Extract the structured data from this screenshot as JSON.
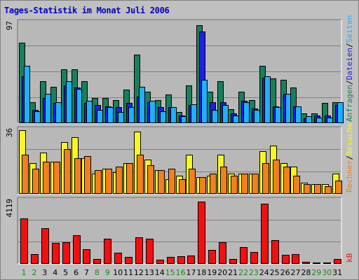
{
  "title": "Tages-Statistik im Monat Juli 2006",
  "colors": {
    "anfragen": "#1a7f5a",
    "dateien": "#2020e0",
    "seiten": "#20b0ff",
    "besuche": "#f8f820",
    "rechner": "#f08020",
    "kb": "#f01010",
    "weekend_label": "#1a8a1a",
    "weekday_label": "#000000",
    "grid": "#808080",
    "panel_bg": "#b8b8b8"
  },
  "chart_data": {
    "type": "bar",
    "title": "Tages-Statistik im Monat Juli 2006",
    "categories": [
      "1",
      "2",
      "3",
      "4",
      "5",
      "6",
      "7",
      "8",
      "9",
      "10",
      "11",
      "12",
      "13",
      "14",
      "15",
      "16",
      "17",
      "18",
      "19",
      "20",
      "21",
      "22",
      "23",
      "24",
      "25",
      "26",
      "27",
      "28",
      "29",
      "30",
      "31"
    ],
    "weekend_days": [
      1,
      2,
      8,
      9,
      15,
      16,
      22,
      23,
      29,
      30
    ],
    "panels": [
      {
        "name": "Anfragen/Dateien/Seiten",
        "ymax_label": "97",
        "ymax": 97,
        "legend": [
          {
            "text": "Anfragen",
            "color": "#1a7f5a"
          },
          {
            "text": "/",
            "color": "#000000"
          },
          {
            "text": "Dateien",
            "color": "#2020e0"
          },
          {
            "text": "/",
            "color": "#000000"
          },
          {
            "text": "Seiten",
            "color": "#20b0ff"
          }
        ],
        "series": [
          {
            "name": "Anfragen",
            "color": "#1a7f5a",
            "values": [
              78,
              20,
              40,
              35,
              52,
              52,
              40,
              24,
              24,
              22,
              32,
              66,
              30,
              22,
              27,
              10,
              36,
              95,
              30,
              40,
              13,
              30,
              22,
              55,
              43,
              42,
              34,
              9,
              9,
              19,
              20
            ]
          },
          {
            "name": "Dateien",
            "color": "#2020e0",
            "values": [
              45,
              12,
              24,
              19,
              36,
              34,
              19,
              17,
              16,
              15,
              19,
              25,
              20,
              15,
              15,
              7,
              17,
              89,
              20,
              20,
              9,
              21,
              14,
              44,
              16,
              28,
              16,
              4,
              7,
              7,
              17
            ]
          },
          {
            "name": "Seiten",
            "color": "#20b0ff",
            "values": [
              55,
              11,
              28,
              20,
              40,
              33,
              21,
              12,
              15,
              10,
              15,
              35,
              21,
              11,
              15,
              6,
              18,
              42,
              12,
              17,
              7,
              20,
              12,
              45,
              15,
              28,
              16,
              6,
              5,
              5,
              20
            ]
          }
        ]
      },
      {
        "name": "Besuche/Rechner",
        "ymax_label": "36",
        "ymax": 36,
        "legend": [
          {
            "text": "Rechner",
            "color": "#f08020"
          },
          {
            "text": "/",
            "color": "#000000"
          },
          {
            "text": "Besuche",
            "color": "#f8f820"
          }
        ],
        "series": [
          {
            "name": "Besuche",
            "color": "#f8f820",
            "values": [
              36,
              17,
              23,
              18,
              29,
              32,
              20,
              11,
              14,
              12,
              17,
              35,
              19,
              13,
              8,
              10,
              22,
              9,
              10,
              22,
              11,
              11,
              11,
              24,
              27,
              17,
              15,
              6,
              5,
              5,
              11
            ]
          },
          {
            "name": "Rechner",
            "color": "#f08020",
            "values": [
              22,
              14,
              18,
              18,
              25,
              20,
              21,
              13,
              14,
              15,
              17,
              22,
              16,
              13,
              14,
              8,
              14,
              9,
              11,
              15,
              10,
              11,
              11,
              17,
              19,
              15,
              10,
              5,
              5,
              4,
              7
            ]
          }
        ]
      },
      {
        "name": "kB",
        "ymax_label": "4119",
        "ymax": 4119,
        "legend": [
          {
            "text": "kB",
            "color": "#f01010"
          }
        ],
        "series": [
          {
            "name": "kB",
            "color": "#f01010",
            "values": [
              2960,
              610,
              2330,
              1350,
              1400,
              1830,
              940,
              270,
              1620,
              690,
              420,
              1700,
              1640,
              250,
              400,
              440,
              500,
              4060,
              860,
              1370,
              290,
              1050,
              740,
              3940,
              1550,
              570,
              580,
              80,
              60,
              60,
              280
            ]
          }
        ]
      }
    ]
  }
}
